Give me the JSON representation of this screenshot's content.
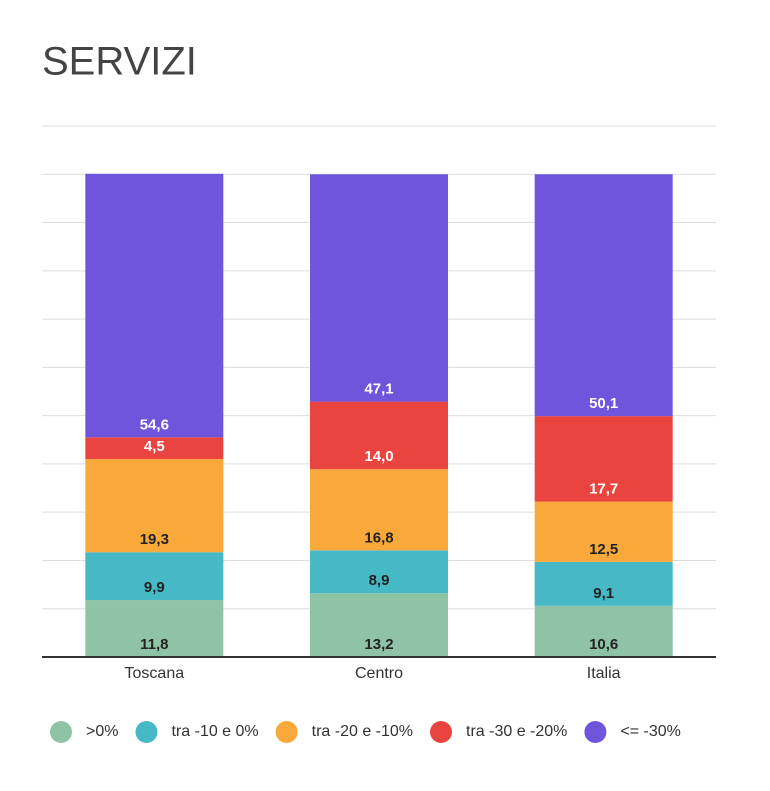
{
  "chart_data": {
    "type": "stacked_bar",
    "title": "SERVIZI",
    "categories": [
      "Toscana",
      "Centro",
      "Italia"
    ],
    "series": [
      {
        "name": ">0%",
        "color": "#8fc3a5",
        "values": [
          11.8,
          13.2,
          10.6
        ],
        "value_labels": [
          "11,8",
          "13,2",
          "10,6"
        ]
      },
      {
        "name": "tra -10 e 0%",
        "color": "#47b9c6",
        "values": [
          9.9,
          8.9,
          9.1
        ],
        "value_labels": [
          "9,9",
          "8,9",
          "9,1"
        ]
      },
      {
        "name": "tra -20 e -10%",
        "color": "#f9a83a",
        "values": [
          19.3,
          16.8,
          12.5
        ],
        "value_labels": [
          "19,3",
          "16,8",
          "12,5"
        ]
      },
      {
        "name": "tra -30 e -20%",
        "color": "#ea4440",
        "values": [
          4.5,
          14.0,
          17.7
        ],
        "value_labels": [
          "4,5",
          "14,0",
          "17,7"
        ]
      },
      {
        "name": "<= -30%",
        "color": "#6e55dc",
        "values": [
          54.6,
          47.1,
          50.1
        ],
        "value_labels": [
          "54,6",
          "47,1",
          "50,1"
        ]
      }
    ],
    "ylim": [
      0,
      110
    ],
    "yticks": [
      0,
      10,
      20,
      30,
      40,
      50,
      60,
      70,
      80,
      90,
      100,
      110
    ],
    "grid": true,
    "legend": "bottom"
  }
}
